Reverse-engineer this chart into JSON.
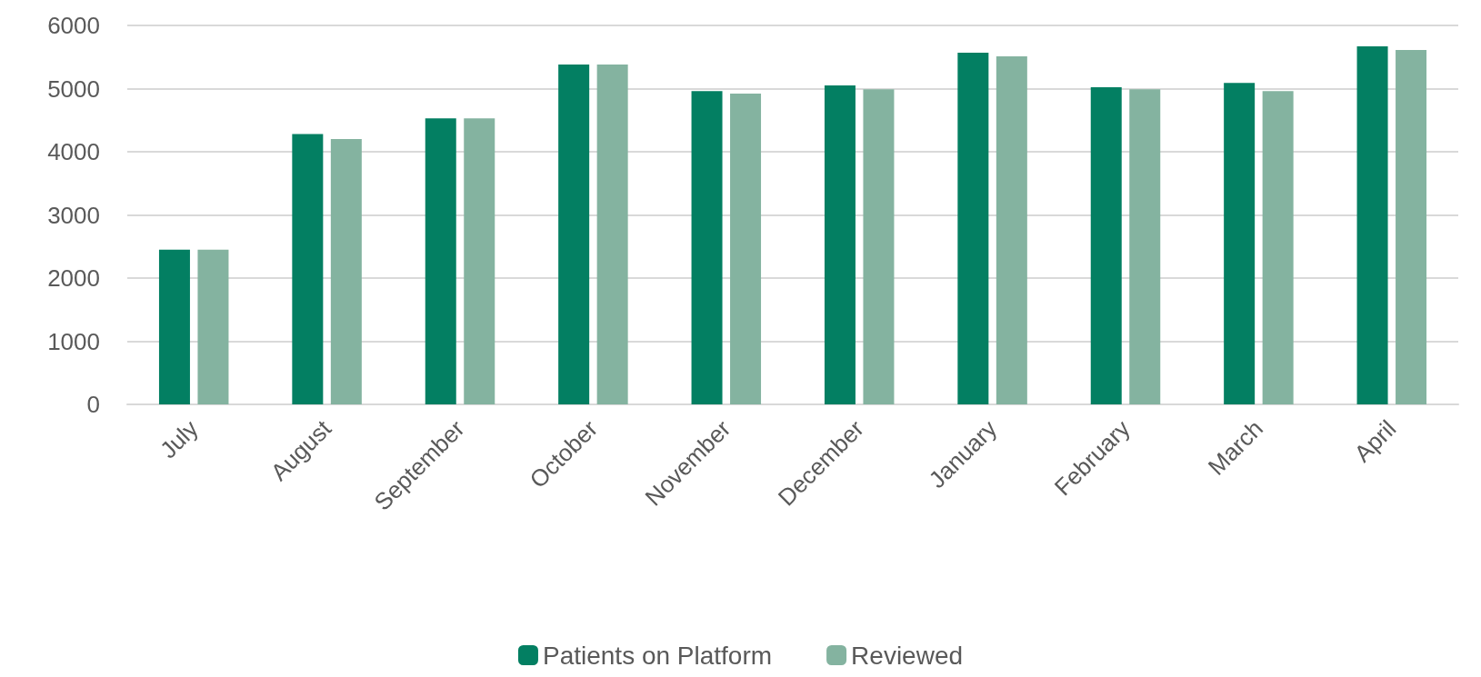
{
  "chart_data": {
    "type": "bar",
    "categories": [
      "July",
      "August",
      "September",
      "October",
      "November",
      "December",
      "January",
      "February",
      "March",
      "April"
    ],
    "series": [
      {
        "name": "Patients on Platform",
        "color": "#037f62",
        "values": [
          2450,
          4280,
          4530,
          5380,
          4960,
          5050,
          5570,
          5020,
          5090,
          5670
        ]
      },
      {
        "name": "Reviewed",
        "color": "#84b3a0",
        "values": [
          2450,
          4200,
          4530,
          5380,
          4920,
          4990,
          5510,
          4990,
          4960,
          5610
        ]
      }
    ],
    "ylim": [
      0,
      6000
    ],
    "yticks": [
      0,
      1000,
      2000,
      3000,
      4000,
      5000,
      6000
    ],
    "grid": "y",
    "legend": "bottom"
  }
}
